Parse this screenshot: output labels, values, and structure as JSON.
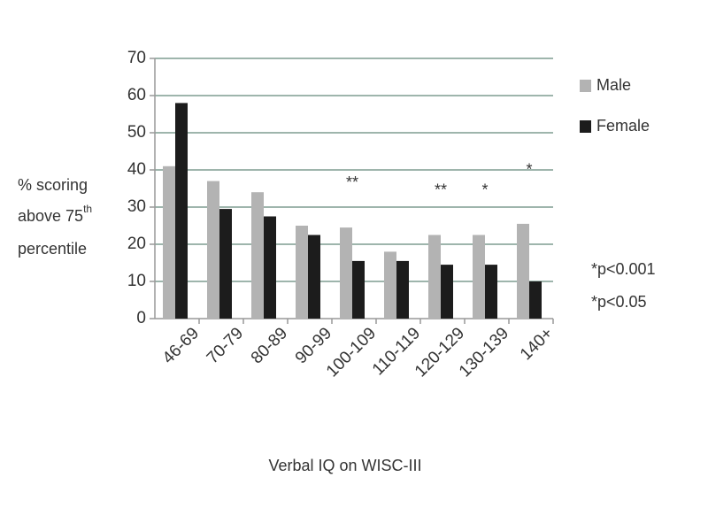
{
  "chart_data": {
    "type": "bar",
    "categories": [
      "46-69",
      "70-79",
      "80-89",
      "90-99",
      "100-109",
      "110-119",
      "120-129",
      "130-139",
      "140+"
    ],
    "series": [
      {
        "name": "Male",
        "color": "#b3b3b3",
        "values": [
          41,
          37,
          34,
          25,
          24.5,
          18,
          22.5,
          22.5,
          25.5
        ]
      },
      {
        "name": "Female",
        "color": "#1c1c1c",
        "values": [
          58,
          29.5,
          27.5,
          22.5,
          15.5,
          15.5,
          14.5,
          14.5,
          10
        ]
      }
    ],
    "ylim": [
      0,
      70
    ],
    "yticks": [
      0,
      10,
      20,
      30,
      40,
      50,
      60,
      70
    ],
    "grid": true,
    "x_label": "Verbal IQ on WISC-III",
    "y_label": {
      "line1": "% scoring",
      "line2": "above 75",
      "sup": "th",
      "line3": "percentile"
    },
    "annotations": [
      {
        "category": "100-109",
        "label": "**"
      },
      {
        "category": "120-129",
        "label": "**"
      },
      {
        "category": "130-139",
        "label": "*"
      },
      {
        "category": "140+",
        "label": "*"
      }
    ],
    "notes": [
      "*p<0.001",
      "*p<0.05"
    ]
  }
}
